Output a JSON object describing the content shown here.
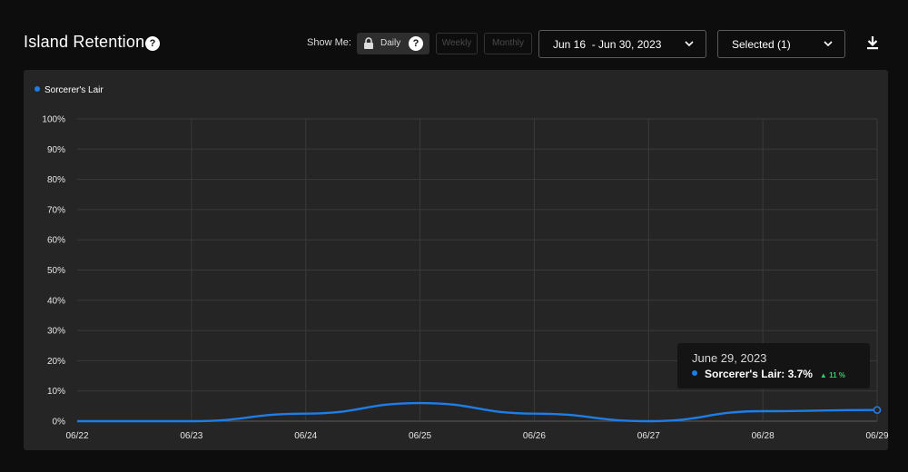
{
  "header": {
    "title": "Island Retention",
    "show_me_label": "Show Me:",
    "granularity": {
      "daily": "Daily",
      "weekly": "Weekly",
      "monthly": "Monthly",
      "selected": "Daily"
    },
    "date_range": "Jun 16  - Jun 30, 2023",
    "selection": "Selected (1)"
  },
  "icons": {
    "help": "?",
    "lock": "lock-icon",
    "chevron": "chevron-down-icon",
    "download": "download-icon"
  },
  "colors": {
    "series": "#1e7de6",
    "up": "#2ecc71",
    "panel": "#252525",
    "background": "#0d0d0d"
  },
  "tooltip": {
    "date": "June 29, 2023",
    "series_label": "Sorcerer's Lair: 3.7%",
    "change": "11 %",
    "change_direction": "up"
  },
  "chart_data": {
    "type": "line",
    "x": [
      "06/22",
      "06/23",
      "06/24",
      "06/25",
      "06/26",
      "06/27",
      "06/28",
      "06/29"
    ],
    "series": [
      {
        "name": "Sorcerer's Lair",
        "values": [
          0,
          0,
          2.5,
          6.0,
          2.5,
          0,
          3.3,
          3.7
        ]
      }
    ],
    "y_ticks": [
      "0%",
      "10%",
      "20%",
      "30%",
      "40%",
      "50%",
      "60%",
      "70%",
      "80%",
      "90%",
      "100%"
    ],
    "ylim": [
      0,
      100
    ],
    "ylabel": "",
    "xlabel": "",
    "grid": true,
    "legend_position": "top-left",
    "highlighted_point": "06/29"
  }
}
